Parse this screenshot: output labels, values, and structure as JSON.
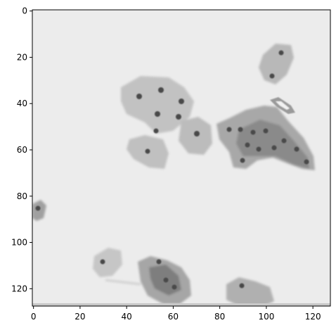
{
  "image": {
    "description_source": "grayscale micrograph shown with matplotlib imshow axes",
    "pixel_extent": {
      "x": [
        0,
        127
      ],
      "y": [
        0,
        127
      ]
    }
  },
  "axes": {
    "x_ticks": [
      {
        "value": 0,
        "label": "0"
      },
      {
        "value": 20,
        "label": "20"
      },
      {
        "value": 40,
        "label": "40"
      },
      {
        "value": 60,
        "label": "60"
      },
      {
        "value": 80,
        "label": "80"
      },
      {
        "value": 100,
        "label": "100"
      },
      {
        "value": 120,
        "label": "120"
      }
    ],
    "y_ticks": [
      {
        "value": 0,
        "label": "0"
      },
      {
        "value": 20,
        "label": "20"
      },
      {
        "value": 40,
        "label": "40"
      },
      {
        "value": 60,
        "label": "60"
      },
      {
        "value": 80,
        "label": "80"
      },
      {
        "value": 100,
        "label": "100"
      },
      {
        "value": 120,
        "label": "120"
      }
    ]
  },
  "colors": {
    "background": "#ececec",
    "cell": "#bdbdbd",
    "cell_dark": "#8f8f8f",
    "nucleus": "#4a4a4a",
    "bottom_band": "#c8c8c8"
  }
}
